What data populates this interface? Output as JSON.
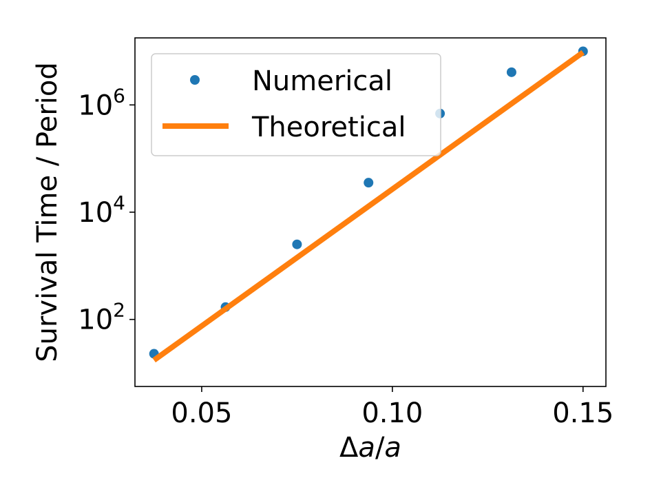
{
  "chart_data": {
    "type": "scatter",
    "xlabel": {
      "prefix": "Δ",
      "a1": "a",
      "slash": "/",
      "a2": "a"
    },
    "ylabel": "Survival Time / Period",
    "xlim": [
      0.0325,
      0.156
    ],
    "ylim_log10": [
      0.75,
      7.25
    ],
    "y_scale": "log",
    "x_ticks": [
      0.05,
      0.1,
      0.15
    ],
    "x_tick_labels": [
      "0.05",
      "0.10",
      "0.15"
    ],
    "y_ticks_log10": [
      2,
      4,
      6
    ],
    "y_tick_base": "10",
    "y_tick_exponents": [
      "2",
      "4",
      "6"
    ],
    "grid": false,
    "legend_placement": "upper-left",
    "series": [
      {
        "name": "Numerical",
        "kind": "scatter",
        "color": "#1f77b4",
        "x": [
          0.0375,
          0.05625,
          0.075,
          0.09375,
          0.1125,
          0.13125,
          0.15
        ],
        "y_log10": [
          1.36,
          2.23,
          3.4,
          4.55,
          5.84,
          6.61,
          7.0
        ]
      },
      {
        "name": "Theoretical",
        "kind": "line",
        "color": "#ff7f0e",
        "x": [
          0.0375,
          0.15
        ],
        "y_log10": [
          1.24,
          6.98
        ]
      }
    ]
  }
}
